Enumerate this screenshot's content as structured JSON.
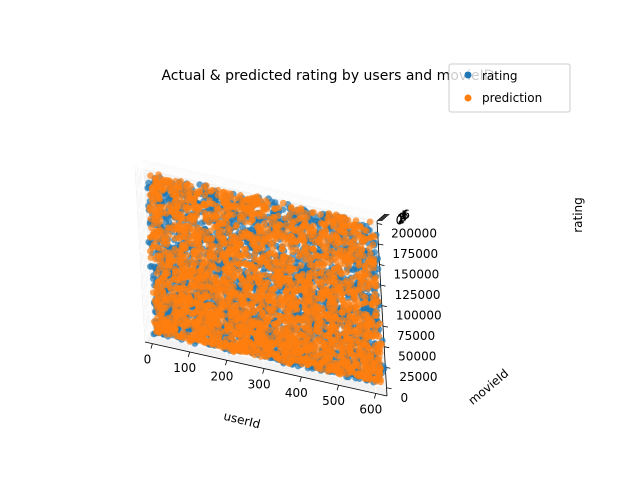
{
  "chart_data": {
    "type": "scatter",
    "title": "Actual & predicted rating by users and movieID",
    "projection": "3d",
    "xlabel": "userId",
    "ylabel": "movieId",
    "zlabel": "rating",
    "xlim": [
      -20,
      630
    ],
    "ylim": [
      -10000,
      203000
    ],
    "zlim": [
      -0.6,
      6.5
    ],
    "x_ticks": [
      0,
      100,
      200,
      300,
      400,
      500,
      600
    ],
    "y_ticks": [
      0,
      25000,
      50000,
      75000,
      100000,
      125000,
      150000,
      175000,
      200000
    ],
    "z_ticks": [
      0,
      1,
      2,
      3,
      4,
      5,
      6
    ],
    "legend": {
      "position": "top-right"
    },
    "series": [
      {
        "name": "rating",
        "color": "#1f77b4",
        "point_count": 3000,
        "x_range": [
          1,
          610
        ],
        "y_range": [
          1,
          193609
        ],
        "values_set": [
          0.5,
          1,
          1.5,
          2,
          2.5,
          3,
          3.5,
          4,
          4.5,
          5
        ]
      },
      {
        "name": "prediction",
        "color": "#ff7f0e",
        "point_count": 3000,
        "x_range": [
          1,
          610
        ],
        "y_range": [
          1,
          193609
        ],
        "values_range": [
          0.2,
          5.6
        ]
      }
    ]
  }
}
